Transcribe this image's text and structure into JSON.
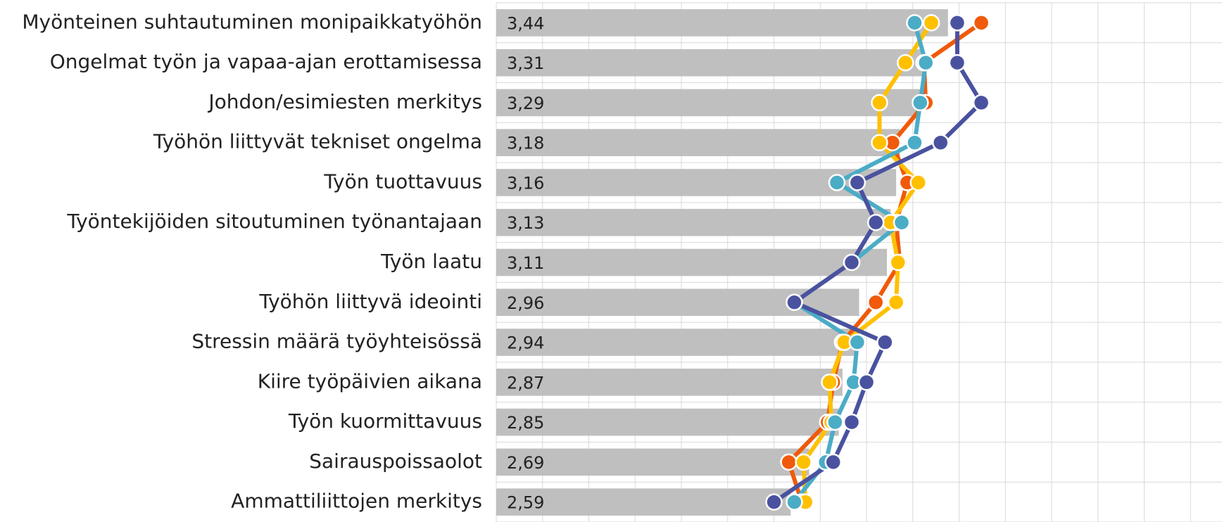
{
  "chart_data": {
    "type": "bar-line",
    "categories": [
      "Myönteinen suhtautuminen monipaikkatyöhön",
      "Ongelmat työn ja vapaa-ajan erottamisessa",
      "Johdon/esimiesten merkitys",
      "Työhön liittyvät tekniset ongelma",
      "Työn tuottavuus",
      "Työntekijöiden sitoutuminen työnantajaan",
      "Työn laatu",
      "Työhön liittyvä ideointi",
      "Stressin määrä työyhteisössä",
      "Kiire työpäivien aikana",
      "Työn kuormittavuus",
      "Sairauspoissaolot",
      "Ammattiliittojen merkitys"
    ],
    "values": [
      3.44,
      3.31,
      3.29,
      3.18,
      3.16,
      3.13,
      3.11,
      2.96,
      2.94,
      2.87,
      2.85,
      2.69,
      2.59
    ],
    "value_labels": [
      "3,44",
      "3,31",
      "3,29",
      "3,18",
      "3,16",
      "3,13",
      "3,11",
      "2,96",
      "2,94",
      "2,87",
      "2,85",
      "2,69",
      "2,59"
    ],
    "color": "#bfbfbf",
    "series": [
      {
        "color": "#f05a0a",
        "values": [
          3.62,
          3.31,
          3.32,
          3.14,
          3.22,
          3.16,
          3.18,
          3.05,
          2.87,
          2.82,
          2.79,
          2.58,
          2.65
        ]
      },
      {
        "color": "#ffc000",
        "values": [
          3.35,
          3.21,
          3.07,
          3.07,
          3.28,
          3.13,
          3.17,
          3.16,
          2.88,
          2.8,
          2.81,
          2.66,
          2.67
        ]
      },
      {
        "color": "#4bacc6",
        "values": [
          3.26,
          3.32,
          3.29,
          3.26,
          2.84,
          3.19,
          2.92,
          2.61,
          2.95,
          2.93,
          2.83,
          2.78,
          2.61
        ]
      },
      {
        "color": "#4a529f",
        "values": [
          3.49,
          3.49,
          3.62,
          3.4,
          2.95,
          3.05,
          2.92,
          2.61,
          3.1,
          3.0,
          2.92,
          2.82,
          2.5
        ]
      }
    ],
    "xlim": [
      1,
      4.92
    ],
    "xticks": [
      1,
      1.25,
      1.5,
      1.75,
      2,
      2.25,
      2.5,
      2.75,
      3,
      3.25,
      3.5,
      3.75,
      4,
      4.25,
      4.5,
      4.75
    ],
    "grid": true
  }
}
